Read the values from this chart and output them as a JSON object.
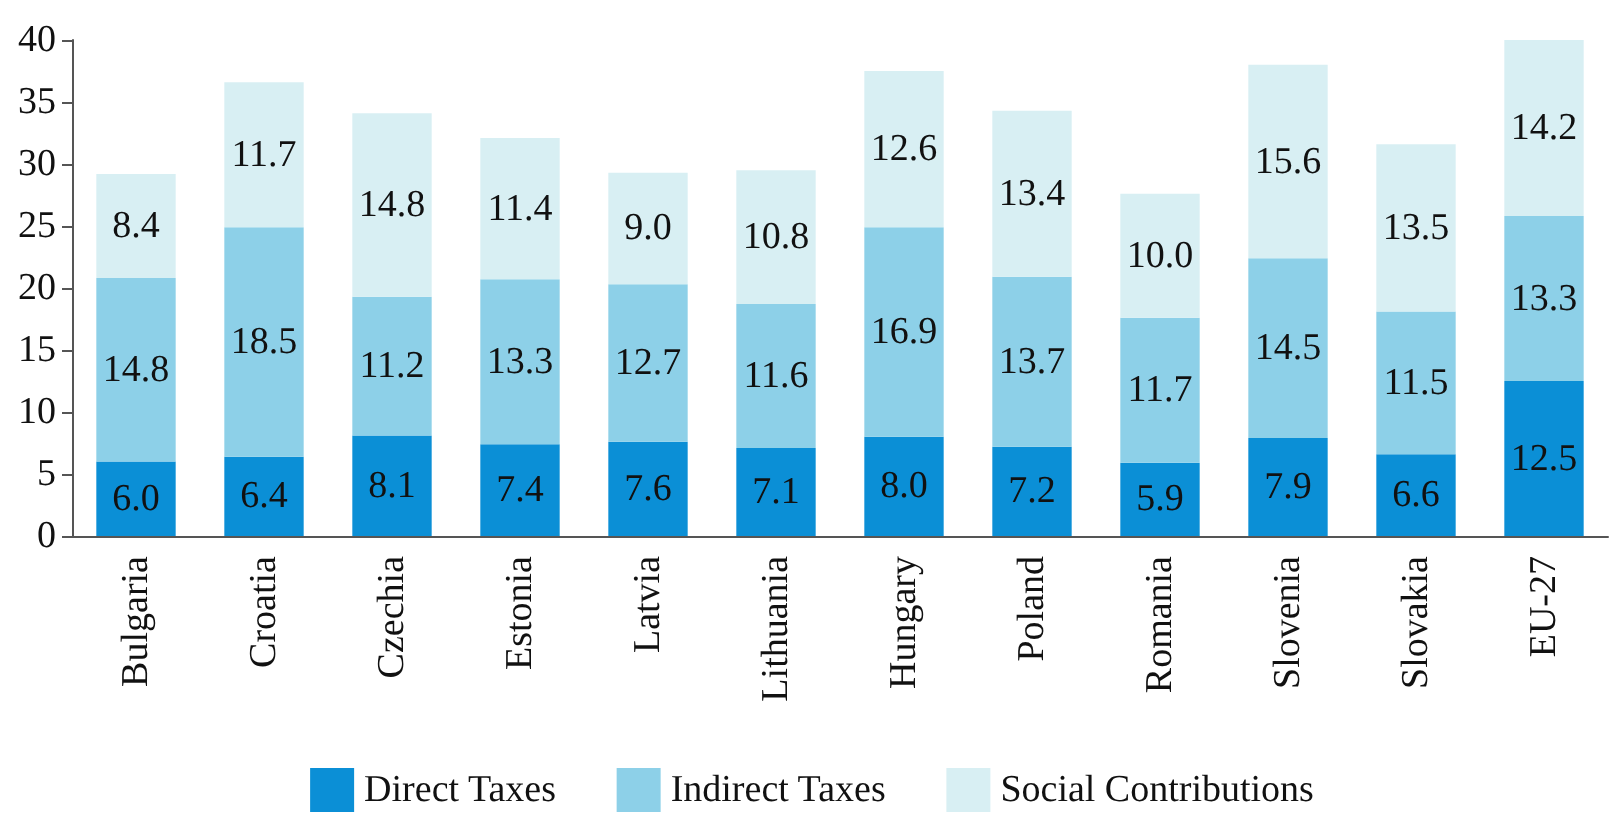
{
  "chart_data": {
    "type": "bar",
    "stacked": true,
    "categories": [
      "Bulgaria",
      "Croatia",
      "Czechia",
      "Estonia",
      "Latvia",
      "Lithuania",
      "Hungary",
      "Poland",
      "Romania",
      "Slovenia",
      "Slovakia",
      "EU-27"
    ],
    "series": [
      {
        "name": "Direct Taxes",
        "color": "#0b8fd6",
        "values": [
          6.0,
          6.4,
          8.1,
          7.4,
          7.6,
          7.1,
          8.0,
          7.2,
          5.9,
          7.9,
          6.6,
          12.5
        ],
        "value_labels": [
          "6.0",
          "6.4",
          "8.1",
          "7.4",
          "7.6",
          "7.1",
          "8.0",
          "7.2",
          "5.9",
          "7.9",
          "6.6",
          "12.5"
        ]
      },
      {
        "name": "Indirect Taxes",
        "color": "#8dd0e8",
        "values": [
          14.8,
          18.5,
          11.2,
          13.3,
          12.7,
          11.6,
          16.9,
          13.7,
          11.7,
          14.5,
          11.5,
          13.3
        ],
        "value_labels": [
          "14.8",
          "18.5",
          "11.2",
          "13.3",
          "12.7",
          "11.6",
          "16.9",
          "13.7",
          "11.7",
          "14.5",
          "11.5",
          "13.3"
        ]
      },
      {
        "name": "Social Contributions",
        "color": "#d8eff3",
        "values": [
          8.4,
          11.7,
          14.8,
          11.4,
          9.0,
          10.8,
          12.6,
          13.4,
          10.0,
          15.6,
          13.5,
          14.2
        ],
        "value_labels": [
          "8.4",
          "11.7",
          "14.8",
          "11.4",
          "9.0",
          "10.8",
          "12.6",
          "13.4",
          "10.0",
          "15.6",
          "13.5",
          "14.2"
        ]
      }
    ],
    "ylim": [
      0,
      40
    ],
    "yticks": [
      0,
      5,
      10,
      15,
      20,
      25,
      30,
      35,
      40
    ],
    "grid": false,
    "legend": "bottom"
  }
}
